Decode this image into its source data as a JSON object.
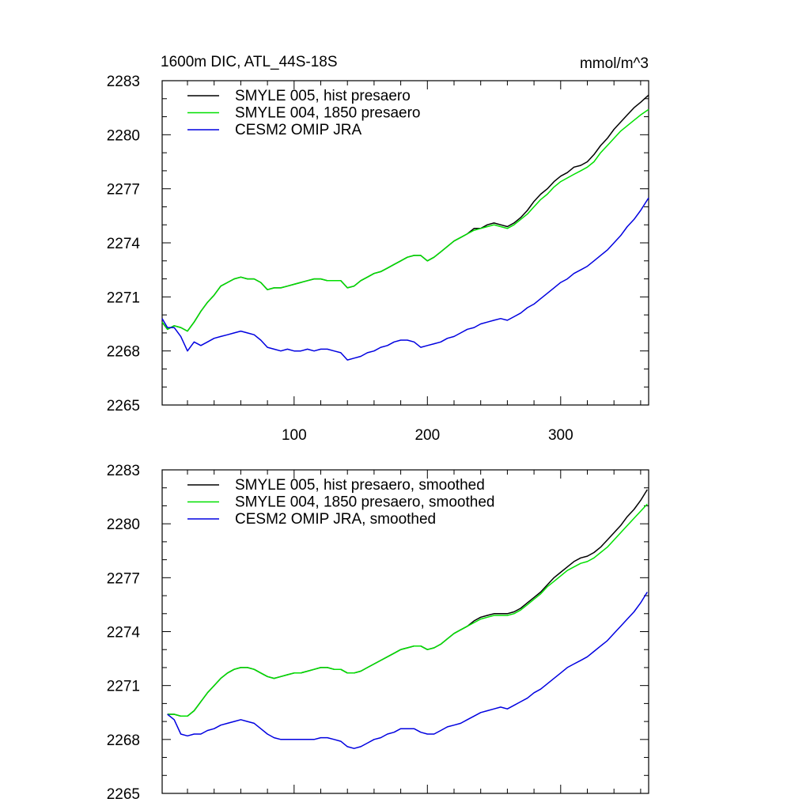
{
  "title": "1600m DIC, ATL_44S-18S",
  "units": "mmol/m^3",
  "chart_data": [
    {
      "type": "line",
      "xlim": [
        1,
        366
      ],
      "ylim": [
        2265,
        2283
      ],
      "yticks": [
        2265,
        2268,
        2271,
        2274,
        2277,
        2280,
        2283
      ],
      "xticks": [
        100,
        200,
        300
      ],
      "x_tick_labels_shown": true,
      "legend_position": "top-left",
      "grid": false,
      "series": [
        {
          "name": "SMYLE 005, hist presaero",
          "color": "#000000",
          "x": [
            1,
            5,
            10,
            15,
            20,
            25,
            30,
            35,
            40,
            45,
            50,
            55,
            60,
            65,
            70,
            75,
            80,
            85,
            90,
            95,
            100,
            105,
            110,
            115,
            120,
            125,
            130,
            135,
            140,
            145,
            150,
            155,
            160,
            165,
            170,
            175,
            180,
            185,
            190,
            195,
            200,
            205,
            210,
            215,
            220,
            225,
            230,
            235,
            240,
            245,
            250,
            255,
            260,
            265,
            270,
            275,
            280,
            285,
            290,
            295,
            300,
            305,
            310,
            315,
            320,
            325,
            330,
            335,
            340,
            345,
            350,
            355,
            360,
            366
          ],
          "y": [
            2269.6,
            2269.2,
            2269.4,
            2269.3,
            2269.1,
            2269.6,
            2270.2,
            2270.7,
            2271.1,
            2271.6,
            2271.8,
            2272.0,
            2272.1,
            2272.0,
            2272.0,
            2271.8,
            2271.4,
            2271.5,
            2271.5,
            2271.6,
            2271.7,
            2271.8,
            2271.9,
            2272.0,
            2272.0,
            2271.9,
            2271.9,
            2271.9,
            2271.5,
            2271.6,
            2271.9,
            2272.1,
            2272.3,
            2272.4,
            2272.6,
            2272.8,
            2273.0,
            2273.2,
            2273.3,
            2273.3,
            2273.0,
            2273.2,
            2273.5,
            2273.8,
            2274.1,
            2274.3,
            2274.5,
            2274.8,
            2274.8,
            2275.0,
            2275.1,
            2275.0,
            2274.9,
            2275.1,
            2275.4,
            2275.8,
            2276.3,
            2276.7,
            2277.0,
            2277.4,
            2277.7,
            2277.9,
            2278.2,
            2278.3,
            2278.5,
            2278.9,
            2279.4,
            2279.8,
            2280.3,
            2280.7,
            2281.1,
            2281.5,
            2281.8,
            2282.2
          ]
        },
        {
          "name": "SMYLE 004, 1850 presaero",
          "color": "#00e000",
          "x": [
            1,
            5,
            10,
            15,
            20,
            25,
            30,
            35,
            40,
            45,
            50,
            55,
            60,
            65,
            70,
            75,
            80,
            85,
            90,
            95,
            100,
            105,
            110,
            115,
            120,
            125,
            130,
            135,
            140,
            145,
            150,
            155,
            160,
            165,
            170,
            175,
            180,
            185,
            190,
            195,
            200,
            205,
            210,
            215,
            220,
            225,
            230,
            235,
            240,
            245,
            250,
            255,
            260,
            265,
            270,
            275,
            280,
            285,
            290,
            295,
            300,
            305,
            310,
            315,
            320,
            325,
            330,
            335,
            340,
            345,
            350,
            355,
            360,
            366
          ],
          "y": [
            2269.6,
            2269.2,
            2269.4,
            2269.3,
            2269.1,
            2269.6,
            2270.2,
            2270.7,
            2271.1,
            2271.6,
            2271.8,
            2272.0,
            2272.1,
            2272.0,
            2272.0,
            2271.8,
            2271.4,
            2271.5,
            2271.5,
            2271.6,
            2271.7,
            2271.8,
            2271.9,
            2272.0,
            2272.0,
            2271.9,
            2271.9,
            2271.9,
            2271.5,
            2271.6,
            2271.9,
            2272.1,
            2272.3,
            2272.4,
            2272.6,
            2272.8,
            2273.0,
            2273.2,
            2273.3,
            2273.3,
            2273.0,
            2273.2,
            2273.5,
            2273.8,
            2274.1,
            2274.3,
            2274.5,
            2274.7,
            2274.8,
            2274.9,
            2275.0,
            2274.9,
            2274.8,
            2275.0,
            2275.3,
            2275.6,
            2276.0,
            2276.4,
            2276.7,
            2277.1,
            2277.4,
            2277.6,
            2277.8,
            2278.0,
            2278.2,
            2278.5,
            2279.0,
            2279.4,
            2279.8,
            2280.2,
            2280.5,
            2280.8,
            2281.1,
            2281.4
          ]
        },
        {
          "name": "CESM2 OMIP JRA",
          "color": "#0000e0",
          "x": [
            1,
            5,
            10,
            15,
            20,
            25,
            30,
            35,
            40,
            45,
            50,
            55,
            60,
            65,
            70,
            75,
            80,
            85,
            90,
            95,
            100,
            105,
            110,
            115,
            120,
            125,
            130,
            135,
            140,
            145,
            150,
            155,
            160,
            165,
            170,
            175,
            180,
            185,
            190,
            195,
            200,
            205,
            210,
            215,
            220,
            225,
            230,
            235,
            240,
            245,
            250,
            255,
            260,
            265,
            270,
            275,
            280,
            285,
            290,
            295,
            300,
            305,
            310,
            315,
            320,
            325,
            330,
            335,
            340,
            345,
            350,
            355,
            360,
            366
          ],
          "y": [
            2269.8,
            2269.3,
            2269.3,
            2268.8,
            2268.0,
            2268.5,
            2268.3,
            2268.5,
            2268.7,
            2268.8,
            2268.9,
            2269.0,
            2269.1,
            2269.0,
            2268.9,
            2268.6,
            2268.2,
            2268.1,
            2268.0,
            2268.1,
            2268.0,
            2268.0,
            2268.1,
            2268.0,
            2268.1,
            2268.1,
            2268.0,
            2267.9,
            2267.5,
            2267.6,
            2267.7,
            2267.9,
            2268.0,
            2268.2,
            2268.3,
            2268.5,
            2268.6,
            2268.6,
            2268.5,
            2268.2,
            2268.3,
            2268.4,
            2268.5,
            2268.7,
            2268.8,
            2269.0,
            2269.2,
            2269.3,
            2269.5,
            2269.6,
            2269.7,
            2269.8,
            2269.7,
            2269.9,
            2270.1,
            2270.4,
            2270.6,
            2270.9,
            2271.2,
            2271.5,
            2271.8,
            2272.0,
            2272.3,
            2272.5,
            2272.7,
            2273.0,
            2273.3,
            2273.6,
            2274.0,
            2274.4,
            2274.9,
            2275.3,
            2275.8,
            2276.5
          ]
        }
      ]
    },
    {
      "type": "line",
      "xlim": [
        1,
        366
      ],
      "ylim": [
        2265,
        2283
      ],
      "yticks": [
        2265,
        2268,
        2271,
        2274,
        2277,
        2280,
        2283
      ],
      "xticks": [
        100,
        200,
        300
      ],
      "x_tick_labels_shown": false,
      "legend_position": "top-left",
      "grid": false,
      "series": [
        {
          "name": "SMYLE 005, hist presaero, smoothed",
          "color": "#000000",
          "x": [
            5,
            10,
            15,
            20,
            25,
            30,
            35,
            40,
            45,
            50,
            55,
            60,
            65,
            70,
            75,
            80,
            85,
            90,
            95,
            100,
            105,
            110,
            115,
            120,
            125,
            130,
            135,
            140,
            145,
            150,
            155,
            160,
            165,
            170,
            175,
            180,
            185,
            190,
            195,
            200,
            205,
            210,
            215,
            220,
            225,
            230,
            235,
            240,
            245,
            250,
            255,
            260,
            265,
            270,
            275,
            280,
            285,
            290,
            295,
            300,
            305,
            310,
            315,
            320,
            325,
            330,
            335,
            340,
            345,
            350,
            355,
            360,
            365
          ],
          "y": [
            2269.4,
            2269.4,
            2269.3,
            2269.3,
            2269.6,
            2270.1,
            2270.6,
            2271.0,
            2271.4,
            2271.7,
            2271.9,
            2272.0,
            2272.0,
            2271.9,
            2271.7,
            2271.5,
            2271.4,
            2271.5,
            2271.6,
            2271.7,
            2271.7,
            2271.8,
            2271.9,
            2272.0,
            2272.0,
            2271.9,
            2271.9,
            2271.7,
            2271.7,
            2271.8,
            2272.0,
            2272.2,
            2272.4,
            2272.6,
            2272.8,
            2273.0,
            2273.1,
            2273.2,
            2273.2,
            2273.0,
            2273.1,
            2273.3,
            2273.6,
            2273.9,
            2274.1,
            2274.3,
            2274.6,
            2274.8,
            2274.9,
            2275.0,
            2275.0,
            2275.0,
            2275.1,
            2275.3,
            2275.6,
            2275.9,
            2276.2,
            2276.6,
            2277.0,
            2277.3,
            2277.6,
            2277.9,
            2278.1,
            2278.2,
            2278.4,
            2278.7,
            2279.1,
            2279.5,
            2279.9,
            2280.4,
            2280.8,
            2281.3,
            2281.9
          ]
        },
        {
          "name": "SMYLE 004, 1850 presaero, smoothed",
          "color": "#00e000",
          "x": [
            5,
            10,
            15,
            20,
            25,
            30,
            35,
            40,
            45,
            50,
            55,
            60,
            65,
            70,
            75,
            80,
            85,
            90,
            95,
            100,
            105,
            110,
            115,
            120,
            125,
            130,
            135,
            140,
            145,
            150,
            155,
            160,
            165,
            170,
            175,
            180,
            185,
            190,
            195,
            200,
            205,
            210,
            215,
            220,
            225,
            230,
            235,
            240,
            245,
            250,
            255,
            260,
            265,
            270,
            275,
            280,
            285,
            290,
            295,
            300,
            305,
            310,
            315,
            320,
            325,
            330,
            335,
            340,
            345,
            350,
            355,
            360,
            365
          ],
          "y": [
            2269.4,
            2269.4,
            2269.3,
            2269.3,
            2269.6,
            2270.1,
            2270.6,
            2271.0,
            2271.4,
            2271.7,
            2271.9,
            2272.0,
            2272.0,
            2271.9,
            2271.7,
            2271.5,
            2271.4,
            2271.5,
            2271.6,
            2271.7,
            2271.7,
            2271.8,
            2271.9,
            2272.0,
            2272.0,
            2271.9,
            2271.9,
            2271.7,
            2271.7,
            2271.8,
            2272.0,
            2272.2,
            2272.4,
            2272.6,
            2272.8,
            2273.0,
            2273.1,
            2273.2,
            2273.2,
            2273.0,
            2273.1,
            2273.3,
            2273.6,
            2273.9,
            2274.1,
            2274.3,
            2274.5,
            2274.7,
            2274.8,
            2274.9,
            2274.9,
            2274.9,
            2275.0,
            2275.2,
            2275.5,
            2275.8,
            2276.1,
            2276.5,
            2276.8,
            2277.1,
            2277.4,
            2277.6,
            2277.8,
            2277.9,
            2278.1,
            2278.4,
            2278.7,
            2279.1,
            2279.5,
            2279.9,
            2280.3,
            2280.7,
            2281.1
          ]
        },
        {
          "name": "CESM2 OMIP JRA, smoothed",
          "color": "#0000e0",
          "x": [
            5,
            10,
            15,
            20,
            25,
            30,
            35,
            40,
            45,
            50,
            55,
            60,
            65,
            70,
            75,
            80,
            85,
            90,
            95,
            100,
            105,
            110,
            115,
            120,
            125,
            130,
            135,
            140,
            145,
            150,
            155,
            160,
            165,
            170,
            175,
            180,
            185,
            190,
            195,
            200,
            205,
            210,
            215,
            220,
            225,
            230,
            235,
            240,
            245,
            250,
            255,
            260,
            265,
            270,
            275,
            280,
            285,
            290,
            295,
            300,
            305,
            310,
            315,
            320,
            325,
            330,
            335,
            340,
            345,
            350,
            355,
            360,
            365
          ],
          "y": [
            2269.4,
            2269.1,
            2268.3,
            2268.2,
            2268.3,
            2268.3,
            2268.5,
            2268.6,
            2268.8,
            2268.9,
            2269.0,
            2269.1,
            2269.0,
            2268.9,
            2268.6,
            2268.3,
            2268.1,
            2268.0,
            2268.0,
            2268.0,
            2268.0,
            2268.0,
            2268.0,
            2268.1,
            2268.1,
            2268.0,
            2267.9,
            2267.6,
            2267.5,
            2267.6,
            2267.8,
            2268.0,
            2268.1,
            2268.3,
            2268.4,
            2268.6,
            2268.6,
            2268.6,
            2268.4,
            2268.3,
            2268.3,
            2268.5,
            2268.7,
            2268.8,
            2268.9,
            2269.1,
            2269.3,
            2269.5,
            2269.6,
            2269.7,
            2269.8,
            2269.7,
            2269.9,
            2270.1,
            2270.3,
            2270.6,
            2270.8,
            2271.1,
            2271.4,
            2271.7,
            2272.0,
            2272.2,
            2272.4,
            2272.6,
            2272.9,
            2273.2,
            2273.5,
            2273.9,
            2274.3,
            2274.7,
            2275.1,
            2275.6,
            2276.2
          ]
        }
      ]
    }
  ]
}
